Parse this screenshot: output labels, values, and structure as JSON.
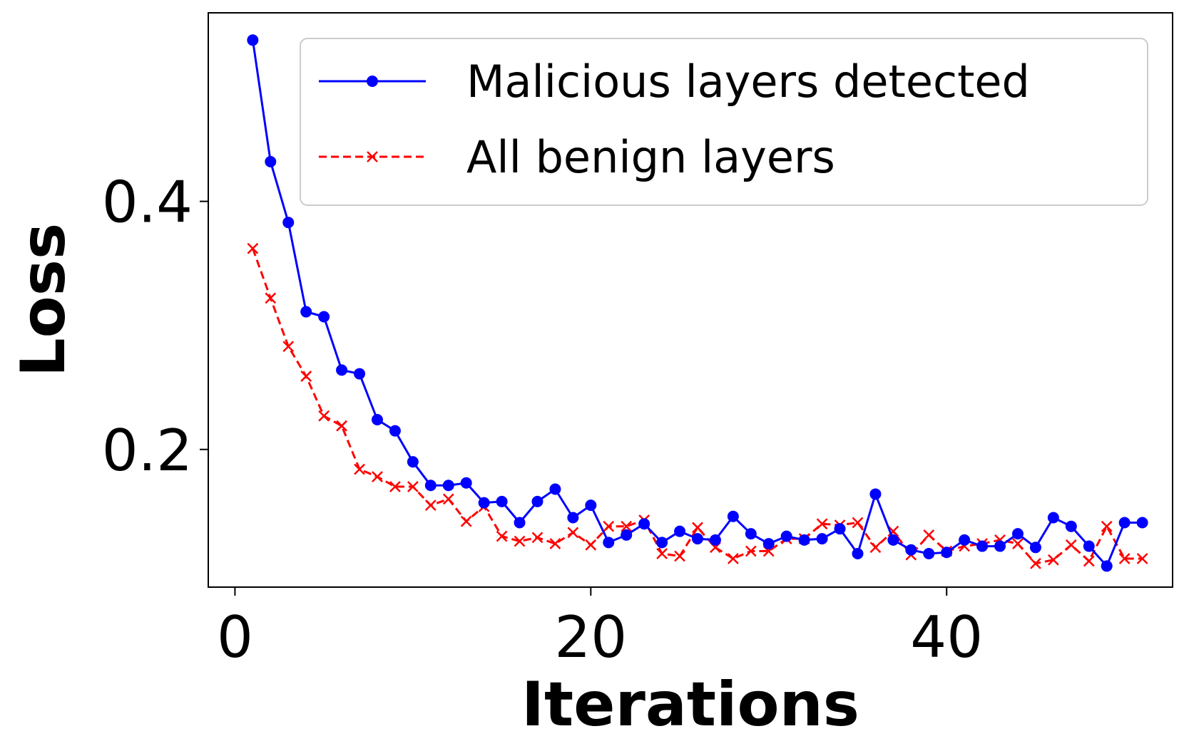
{
  "chart_data": {
    "type": "line",
    "title": "",
    "xlabel": "Iterations",
    "ylabel": "Loss",
    "xlim": [
      -1.5,
      52.7
    ],
    "ylim": [
      0.089,
      0.552
    ],
    "xticks": [
      0,
      20,
      40
    ],
    "xtick_labels": [
      "0",
      "20",
      "40"
    ],
    "yticks": [
      0.2,
      0.4
    ],
    "ytick_labels": [
      "0.2",
      "0.4"
    ],
    "grid": false,
    "legend_position": "top-right",
    "x": [
      1,
      2,
      3,
      4,
      5,
      6,
      7,
      8,
      9,
      10,
      11,
      12,
      13,
      14,
      15,
      16,
      17,
      18,
      19,
      20,
      21,
      22,
      23,
      24,
      25,
      26,
      27,
      28,
      29,
      30,
      31,
      32,
      33,
      34,
      35,
      36,
      37,
      38,
      39,
      40,
      41,
      42,
      43,
      44,
      45,
      46,
      47,
      48,
      49,
      50,
      51
    ],
    "series": [
      {
        "name": "Malicious layers detected",
        "color": "#0000ff",
        "line_style": "solid",
        "marker": "circle",
        "values": [
          0.53,
          0.432,
          0.383,
          0.311,
          0.307,
          0.264,
          0.261,
          0.224,
          0.215,
          0.19,
          0.171,
          0.171,
          0.173,
          0.157,
          0.158,
          0.141,
          0.158,
          0.168,
          0.145,
          0.155,
          0.125,
          0.131,
          0.14,
          0.125,
          0.134,
          0.128,
          0.127,
          0.146,
          0.132,
          0.124,
          0.13,
          0.127,
          0.128,
          0.136,
          0.116,
          0.164,
          0.127,
          0.119,
          0.116,
          0.117,
          0.127,
          0.122,
          0.122,
          0.132,
          0.121,
          0.145,
          0.138,
          0.122,
          0.106,
          0.141,
          0.141
        ]
      },
      {
        "name": "All benign layers",
        "color": "#ff0000",
        "line_style": "dashed",
        "marker": "x",
        "values": [
          0.362,
          0.322,
          0.283,
          0.259,
          0.227,
          0.219,
          0.184,
          0.178,
          0.17,
          0.17,
          0.155,
          0.16,
          0.142,
          0.154,
          0.13,
          0.126,
          0.129,
          0.124,
          0.133,
          0.123,
          0.138,
          0.138,
          0.143,
          0.116,
          0.114,
          0.137,
          0.121,
          0.112,
          0.118,
          0.118,
          0.128,
          0.128,
          0.14,
          0.139,
          0.141,
          0.121,
          0.134,
          0.115,
          0.131,
          0.118,
          0.122,
          0.124,
          0.127,
          0.124,
          0.108,
          0.111,
          0.123,
          0.11,
          0.138,
          0.112,
          0.112
        ]
      }
    ]
  }
}
